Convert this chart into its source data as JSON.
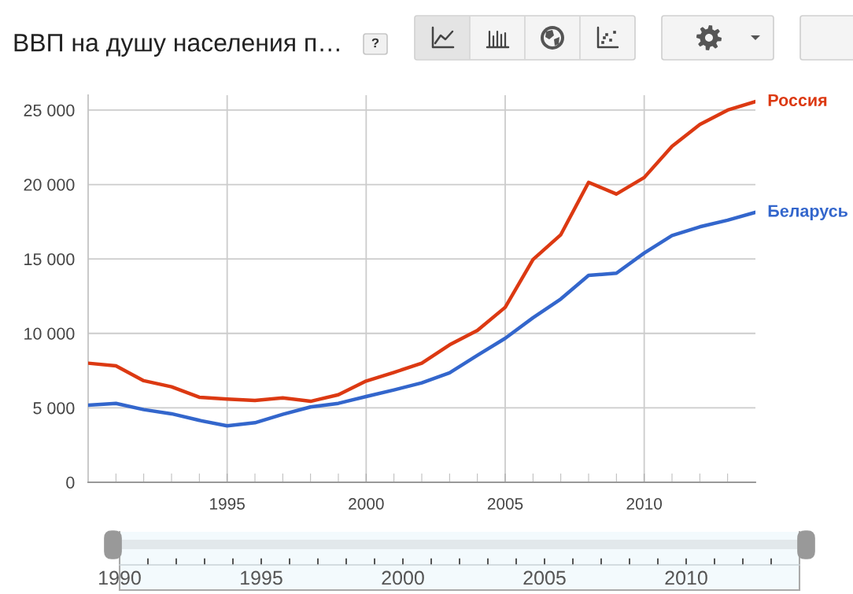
{
  "chart_data": {
    "type": "line",
    "title": "ВВП на душу населения п…",
    "x": [
      1990,
      1991,
      1992,
      1993,
      1994,
      1995,
      1996,
      1997,
      1998,
      1999,
      2000,
      2001,
      2002,
      2003,
      2004,
      2005,
      2006,
      2007,
      2008,
      2009,
      2010,
      2011,
      2012,
      2013,
      2014
    ],
    "series": [
      {
        "name": "Россия",
        "color": "#dc3912",
        "values": [
          8000,
          7820,
          6820,
          6410,
          5710,
          5590,
          5500,
          5670,
          5440,
          5880,
          6800,
          7380,
          8000,
          9230,
          10200,
          11750,
          14960,
          16630,
          20150,
          19360,
          20470,
          22570,
          24030,
          25000,
          25570
        ]
      },
      {
        "name": "Беларусь",
        "color": "#3366cc",
        "values": [
          5180,
          5300,
          4880,
          4600,
          4160,
          3790,
          4000,
          4560,
          5060,
          5300,
          5760,
          6200,
          6680,
          7350,
          8530,
          9670,
          11050,
          12310,
          13900,
          14040,
          15400,
          16580,
          17160,
          17600,
          18130
        ]
      }
    ],
    "xlim": [
      1990,
      2014
    ],
    "xticks": [
      {
        "value": 1991,
        "label": null
      },
      {
        "value": 1992,
        "label": null
      },
      {
        "value": 1993,
        "label": null
      },
      {
        "value": 1994,
        "label": null
      },
      1995,
      {
        "value": 1996,
        "label": null
      },
      {
        "value": 1997,
        "label": null
      },
      {
        "value": 1998,
        "label": null
      },
      {
        "value": 1999,
        "label": null
      },
      2000,
      {
        "value": 2001,
        "label": null
      },
      {
        "value": 2002,
        "label": null
      },
      {
        "value": 2003,
        "label": null
      },
      {
        "value": 2004,
        "label": null
      },
      2005,
      {
        "value": 2006,
        "label": null
      },
      {
        "value": 2007,
        "label": null
      },
      {
        "value": 2008,
        "label": null
      },
      {
        "value": 2009,
        "label": null
      },
      2010,
      {
        "value": 2011,
        "label": null
      },
      {
        "value": 2012,
        "label": null
      },
      {
        "value": 2013,
        "label": null
      }
    ],
    "x2lim": [
      1990,
      2014
    ],
    "x2ticks": [
      1990,
      1995,
      2000,
      2005,
      2010
    ],
    "ylim": [
      0,
      26000
    ],
    "yticks": [
      0,
      {
        "value": 5000,
        "label": "5 000"
      },
      {
        "value": 10000,
        "label": "10 000"
      },
      {
        "value": 15000,
        "label": "15 000"
      },
      {
        "value": 20000,
        "label": "20 000"
      },
      {
        "value": 25000,
        "label": "25 000"
      }
    ],
    "grid": true,
    "annotations": [
      "?"
    ]
  }
}
